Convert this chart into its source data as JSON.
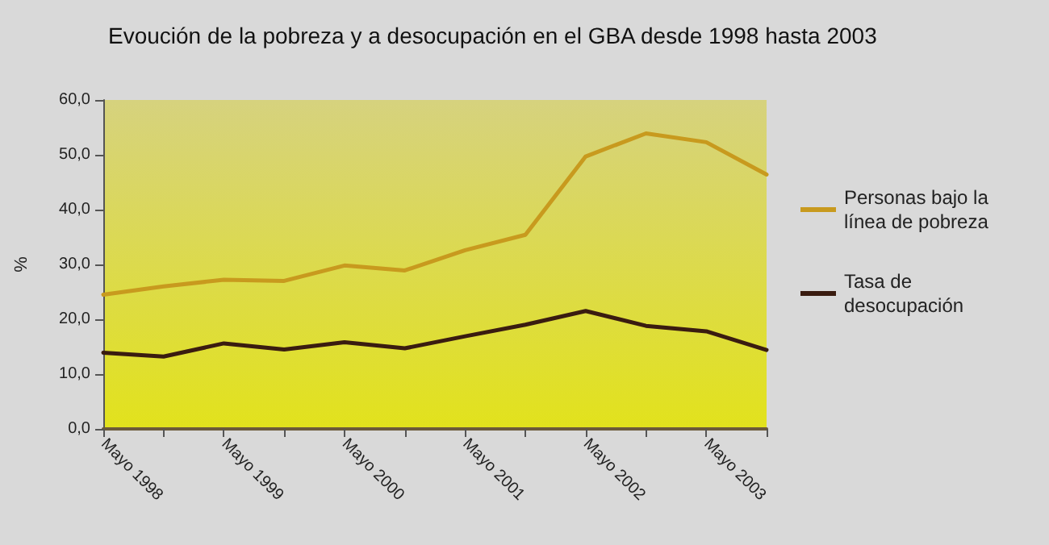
{
  "chart_data": {
    "type": "line",
    "title": "Evoución de la pobreza y a desocupación en el GBA desde 1998 hasta 2003",
    "ylabel": "%",
    "categories": [
      "Mayo 1998",
      null,
      "Mayo 1999",
      null,
      "Mayo 2000",
      null,
      "Mayo 2001",
      null,
      "Mayo 2002",
      null,
      "Mayo 2003",
      null
    ],
    "series": [
      {
        "name": "Personas bajo la línea de pobreza",
        "color": "#c89a1e",
        "values": [
          24.5,
          26.0,
          27.2,
          27.0,
          29.8,
          28.9,
          32.6,
          35.4,
          49.7,
          53.9,
          52.3,
          46.4
        ]
      },
      {
        "name": "Tasa de desocupación",
        "color": "#3a1c10",
        "values": [
          13.9,
          13.2,
          15.6,
          14.5,
          15.8,
          14.7,
          16.9,
          19.0,
          21.5,
          18.8,
          17.8,
          14.4
        ]
      }
    ],
    "ylim": [
      0,
      60
    ],
    "yticks": [
      {
        "value": 0,
        "label": "0,0"
      },
      {
        "value": 10,
        "label": "10,0"
      },
      {
        "value": 20,
        "label": "20,0"
      },
      {
        "value": 30,
        "label": "30,0"
      },
      {
        "value": 40,
        "label": "40,0"
      },
      {
        "value": 50,
        "label": "50,0"
      },
      {
        "value": 60,
        "label": "60,0"
      }
    ],
    "grid": false,
    "legend": "right",
    "marker": "none",
    "line_style": "solid"
  }
}
